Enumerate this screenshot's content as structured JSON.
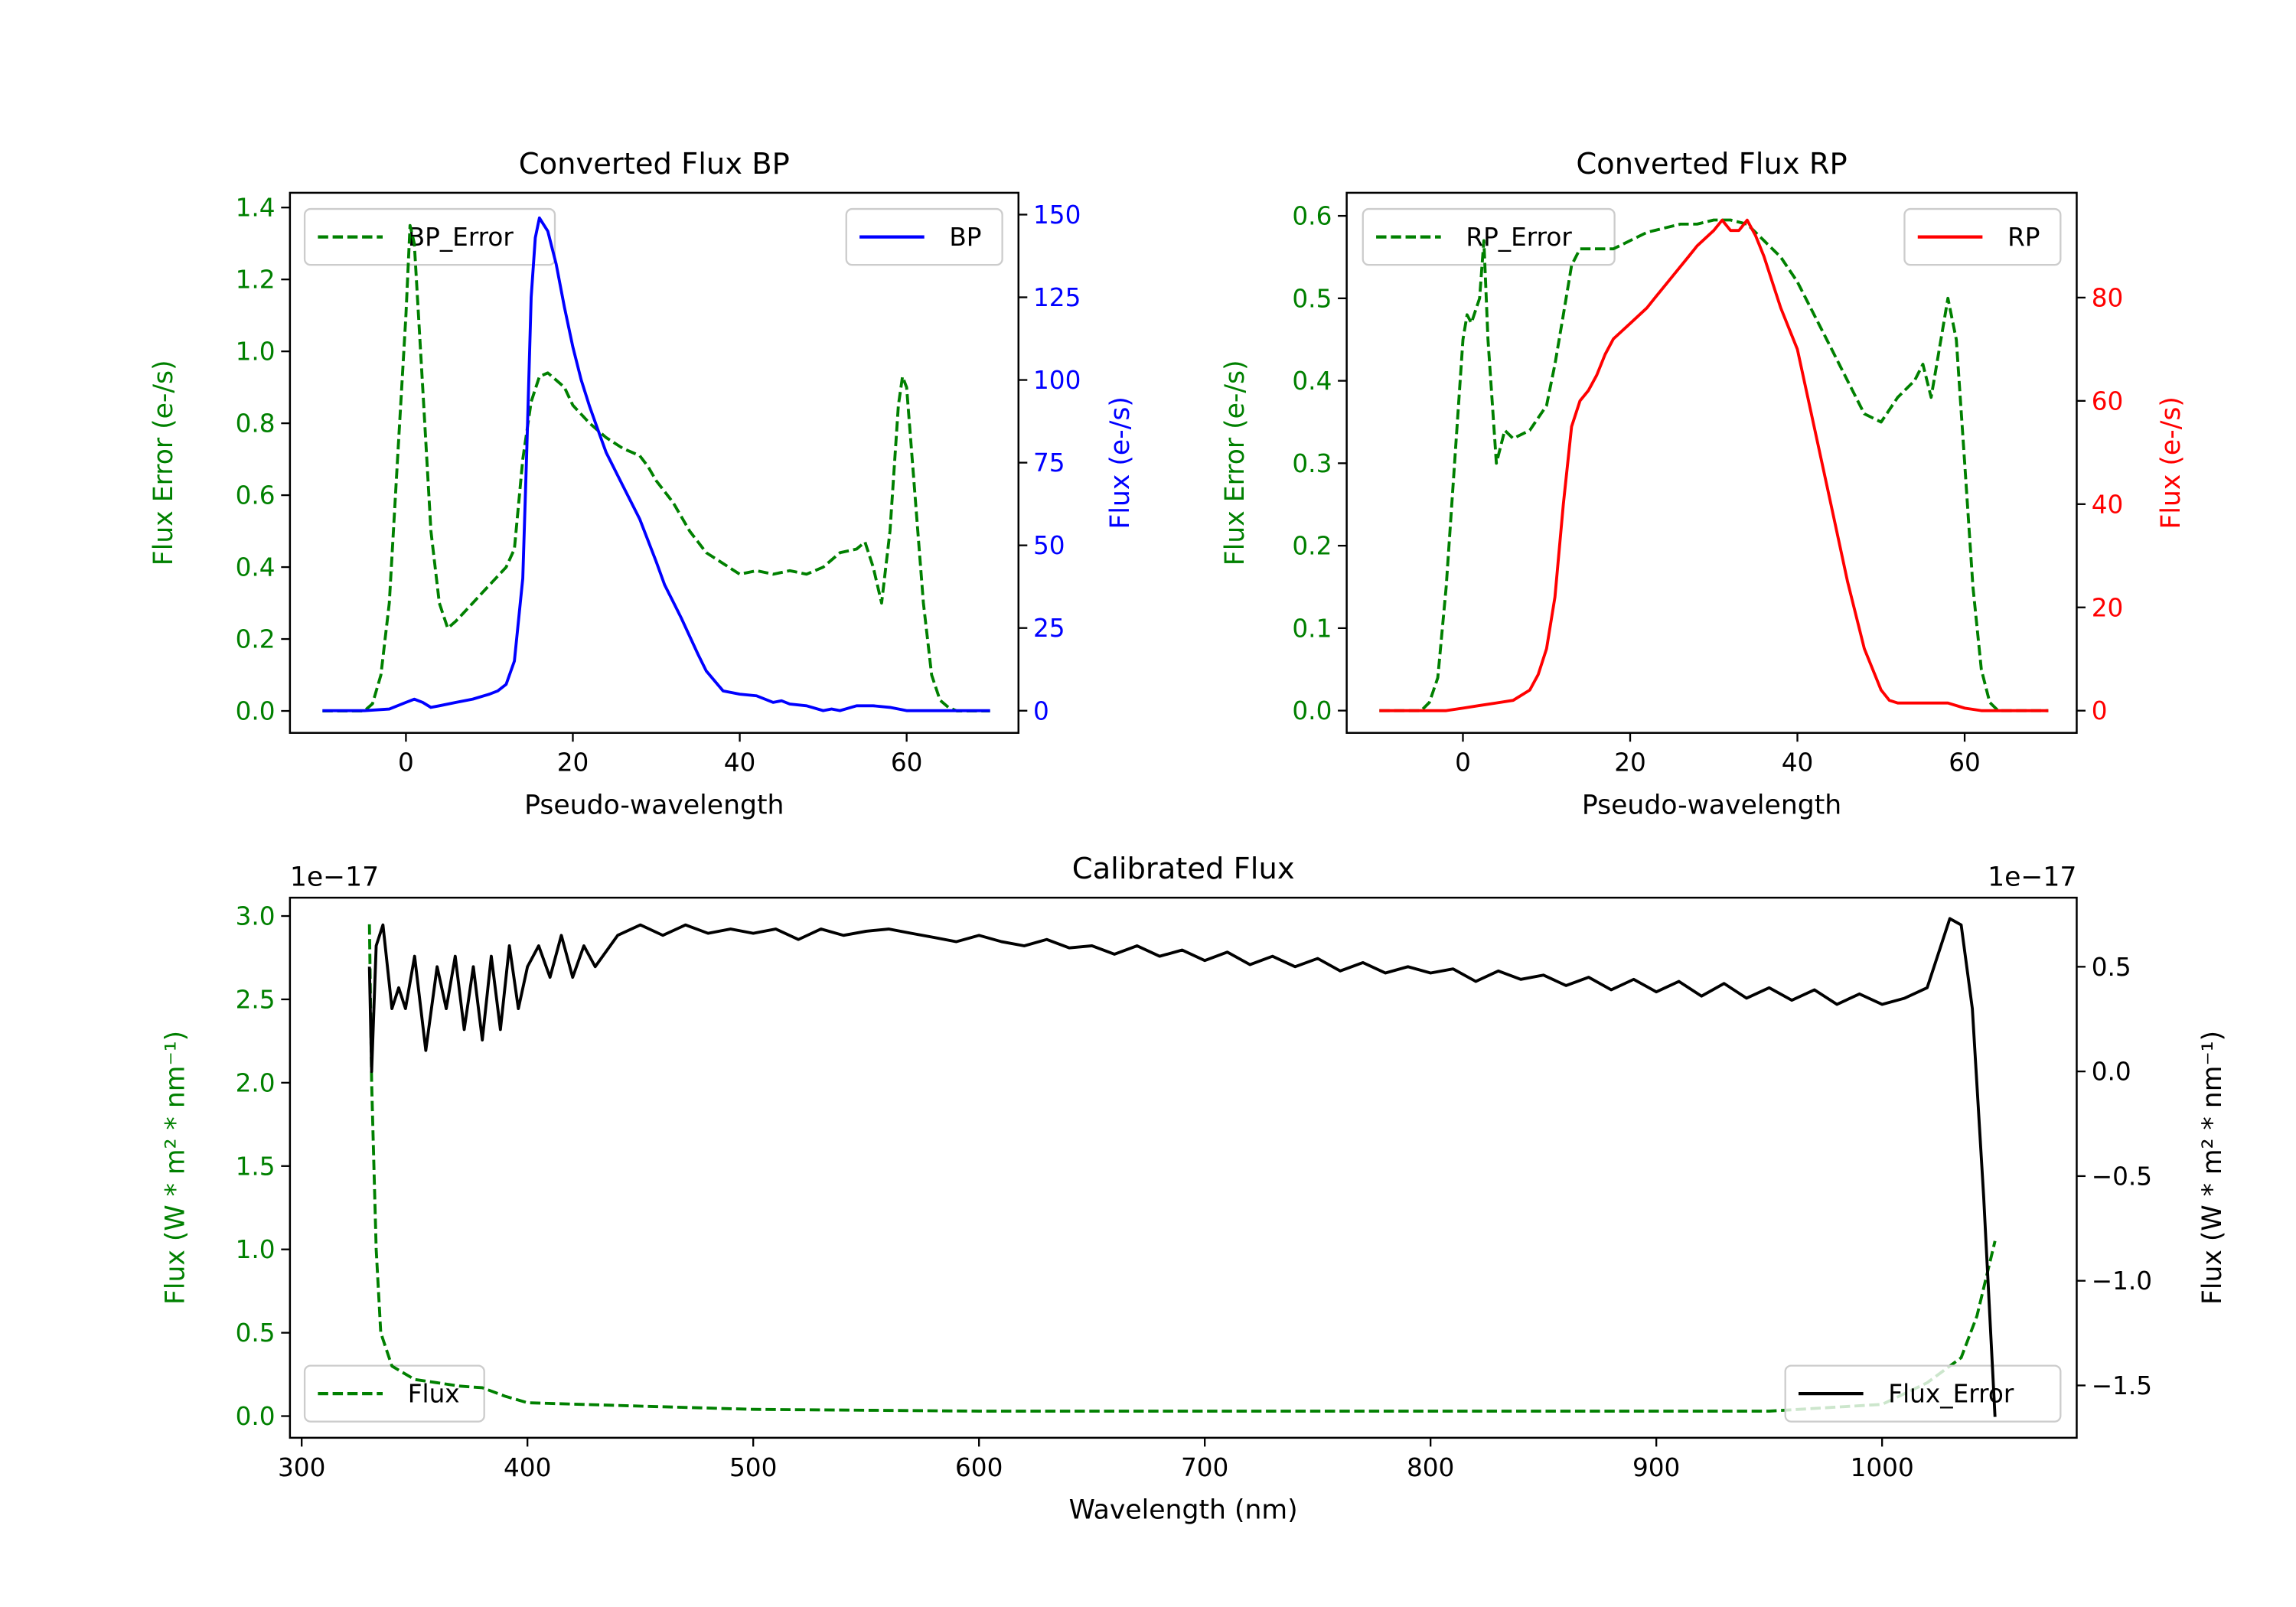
{
  "colors": {
    "error": "#008000",
    "bp": "#0000ff",
    "rp": "#ff0000",
    "flux": "#000000",
    "axis": "#000000"
  },
  "chart_data": [
    {
      "type": "line",
      "title": "Converted Flux BP",
      "xlabel": "Pseudo-wavelength",
      "ylabel_left": "Flux Error (e-/s)",
      "ylabel_right": "Flux (e-/s)",
      "left_color": "#008000",
      "right_color": "#0000ff",
      "xlim": [
        -13.9,
        73.4
      ],
      "ylim_left": [
        -0.061,
        1.441
      ],
      "ylim_right": [
        -6.7,
        156.6
      ],
      "xticks": [
        0,
        20,
        40,
        60
      ],
      "xtick_labels": [
        "0",
        "20",
        "40",
        "60"
      ],
      "yticks_left": [
        0,
        0.2,
        0.4,
        0.6,
        0.8,
        1.0,
        1.2,
        1.4
      ],
      "ytick_labels_left": [
        "0.0",
        "0.2",
        "0.4",
        "0.6",
        "0.8",
        "1.0",
        "1.2",
        "1.4"
      ],
      "yticks_right": [
        0,
        25,
        50,
        75,
        100,
        125,
        150
      ],
      "ytick_labels_right": [
        "0",
        "25",
        "50",
        "75",
        "100",
        "125",
        "150"
      ],
      "offset_left": "",
      "offset_right": "",
      "legend_left": {
        "label": "BP_Error",
        "placement": "top-left"
      },
      "legend_right": {
        "label": "BP",
        "placement": "top-right"
      },
      "series_left": {
        "name": "BP_Error",
        "style": "dashed",
        "color": "#008000",
        "x": [
          -10,
          -5,
          -4,
          -3,
          -2,
          -1,
          0,
          0.5,
          1,
          2,
          3,
          4,
          5,
          6,
          8,
          10,
          12,
          13,
          14,
          15,
          16,
          17,
          18,
          19,
          20,
          22,
          24,
          26,
          28,
          29,
          30,
          32,
          34,
          36,
          38,
          40,
          42,
          44,
          46,
          48,
          50,
          52,
          54,
          55,
          56,
          57,
          58,
          59,
          59.5,
          60,
          61,
          62,
          63,
          64,
          65,
          66,
          70
        ],
        "y": [
          0,
          0,
          0.02,
          0.1,
          0.3,
          0.7,
          1.1,
          1.35,
          1.3,
          0.9,
          0.5,
          0.3,
          0.23,
          0.25,
          0.3,
          0.35,
          0.4,
          0.45,
          0.7,
          0.86,
          0.93,
          0.94,
          0.92,
          0.9,
          0.85,
          0.8,
          0.76,
          0.73,
          0.71,
          0.68,
          0.64,
          0.58,
          0.5,
          0.44,
          0.41,
          0.38,
          0.39,
          0.38,
          0.39,
          0.38,
          0.4,
          0.44,
          0.45,
          0.47,
          0.4,
          0.3,
          0.5,
          0.85,
          0.93,
          0.9,
          0.6,
          0.3,
          0.1,
          0.03,
          0.01,
          0,
          0
        ]
      },
      "series_right": {
        "name": "BP",
        "style": "solid",
        "color": "#0000ff",
        "x": [
          -10,
          -5,
          -2,
          0,
          1,
          2,
          3,
          4,
          6,
          8,
          10,
          11,
          12,
          13,
          14,
          14.5,
          15,
          15.5,
          16,
          17,
          18,
          19,
          20,
          21,
          22,
          23,
          24,
          26,
          28,
          30,
          31,
          32,
          33,
          35,
          36,
          38,
          40,
          42,
          44,
          45,
          46,
          48,
          50,
          51,
          52,
          54,
          56,
          58,
          60,
          62,
          70
        ],
        "y": [
          0,
          0,
          0.5,
          2.5,
          3.5,
          2.5,
          1,
          1.5,
          2.5,
          3.5,
          5,
          6,
          8,
          15,
          40,
          80,
          125,
          143,
          149,
          145,
          135,
          122,
          110,
          100,
          92,
          85,
          78,
          68,
          58,
          45,
          38,
          33,
          28,
          17,
          12,
          6,
          5,
          4.5,
          2.5,
          3,
          2,
          1.5,
          0,
          0.5,
          0,
          1.5,
          1.5,
          1,
          0,
          0,
          0
        ]
      }
    },
    {
      "type": "line",
      "title": "Converted Flux RP",
      "xlabel": "Pseudo-wavelength",
      "ylabel_left": "Flux Error (e-/s)",
      "ylabel_right": "Flux (e-/s)",
      "left_color": "#008000",
      "right_color": "#ff0000",
      "xlim": [
        -13.9,
        73.4
      ],
      "ylim_left": [
        -0.027,
        0.628
      ],
      "ylim_right": [
        -4.3,
        100.3
      ],
      "xticks": [
        0,
        20,
        40,
        60
      ],
      "xtick_labels": [
        "0",
        "20",
        "40",
        "60"
      ],
      "yticks_left": [
        0,
        0.1,
        0.2,
        0.3,
        0.4,
        0.5,
        0.6
      ],
      "ytick_labels_left": [
        "0.0",
        "0.1",
        "0.2",
        "0.3",
        "0.4",
        "0.5",
        "0.6"
      ],
      "yticks_right": [
        0,
        20,
        40,
        60,
        80
      ],
      "ytick_labels_right": [
        "0",
        "20",
        "40",
        "60",
        "80"
      ],
      "offset_left": "",
      "offset_right": "",
      "legend_left": {
        "label": "RP_Error",
        "placement": "top-left"
      },
      "legend_right": {
        "label": "RP",
        "placement": "top-right"
      },
      "series_left": {
        "name": "RP_Error",
        "style": "dashed",
        "color": "#008000",
        "x": [
          -10,
          -5,
          -4,
          -3,
          -2,
          -1,
          0,
          0.5,
          1,
          2,
          2.5,
          3,
          4,
          5,
          6,
          8,
          10,
          11,
          12,
          13,
          14,
          16,
          18,
          20,
          22,
          24,
          26,
          28,
          30,
          32,
          34,
          36,
          38,
          40,
          42,
          44,
          46,
          48,
          50,
          52,
          54,
          55,
          56,
          57,
          58,
          59,
          60,
          61,
          62,
          63,
          64,
          70
        ],
        "y": [
          0,
          0,
          0.01,
          0.04,
          0.15,
          0.3,
          0.45,
          0.48,
          0.47,
          0.5,
          0.57,
          0.45,
          0.3,
          0.34,
          0.33,
          0.34,
          0.37,
          0.42,
          0.48,
          0.54,
          0.56,
          0.56,
          0.56,
          0.57,
          0.58,
          0.585,
          0.59,
          0.59,
          0.595,
          0.595,
          0.59,
          0.57,
          0.55,
          0.52,
          0.48,
          0.44,
          0.4,
          0.36,
          0.35,
          0.38,
          0.4,
          0.42,
          0.38,
          0.44,
          0.5,
          0.45,
          0.3,
          0.15,
          0.05,
          0.01,
          0,
          0
        ]
      },
      "series_right": {
        "name": "RP",
        "style": "solid",
        "color": "#ff0000",
        "x": [
          -10,
          -2,
          0,
          2,
          4,
          6,
          8,
          9,
          10,
          11,
          12,
          13,
          14,
          15,
          16,
          17,
          18,
          20,
          22,
          23,
          25,
          27,
          28,
          30,
          31,
          32,
          33,
          34,
          35,
          36,
          38,
          40,
          42,
          44,
          46,
          48,
          50,
          51,
          52,
          56,
          58,
          60,
          62,
          70
        ],
        "y": [
          0,
          0,
          0.5,
          1,
          1.5,
          2,
          4,
          7,
          12,
          22,
          40,
          55,
          60,
          62,
          65,
          69,
          72,
          75,
          78,
          80,
          84,
          88,
          90,
          93,
          95,
          93,
          93,
          95,
          92,
          88,
          78,
          70,
          55,
          40,
          25,
          12,
          4,
          2,
          1.5,
          1.5,
          1.5,
          0.5,
          0,
          0
        ]
      }
    },
    {
      "type": "line",
      "title": "Calibrated Flux",
      "xlabel": "Wavelength (nm)",
      "ylabel_left": "Flux (W * m² * nm⁻¹)",
      "ylabel_right": "Flux (W * m² * nm⁻¹)",
      "left_color": "#008000",
      "right_color": "#000000",
      "xlim": [
        294.8,
        1086.2
      ],
      "ylim_left": [
        -0.13,
        3.11
      ],
      "ylim_right": [
        -1.75,
        0.83
      ],
      "xticks": [
        300,
        400,
        500,
        600,
        700,
        800,
        900,
        1000
      ],
      "xtick_labels": [
        "300",
        "400",
        "500",
        "600",
        "700",
        "800",
        "900",
        "1000"
      ],
      "yticks_left": [
        0,
        0.5,
        1.0,
        1.5,
        2.0,
        2.5,
        3.0
      ],
      "ytick_labels_left": [
        "0.0",
        "0.5",
        "1.0",
        "1.5",
        "2.0",
        "2.5",
        "3.0"
      ],
      "yticks_right": [
        -1.5,
        -1.0,
        -0.5,
        0.0,
        0.5
      ],
      "ytick_labels_right": [
        "−1.5",
        "−1.0",
        "−0.5",
        "0.0",
        "0.5"
      ],
      "offset_left": "1e−17",
      "offset_right": "1e−17",
      "legend_left": {
        "label": "Flux",
        "placement": "lower-left"
      },
      "legend_right": {
        "label": "Flux_Error",
        "placement": "lower-right"
      },
      "series_left": {
        "name": "Flux_Error",
        "style": "dashed",
        "color": "#008000",
        "x": [
          330,
          331,
          333,
          335,
          340,
          350,
          360,
          370,
          380,
          390,
          400,
          450,
          500,
          600,
          700,
          800,
          900,
          950,
          1000,
          1020,
          1035,
          1042,
          1050
        ],
        "y": [
          2.95,
          2.0,
          1.0,
          0.5,
          0.3,
          0.22,
          0.2,
          0.18,
          0.17,
          0.12,
          0.08,
          0.06,
          0.04,
          0.03,
          0.03,
          0.03,
          0.03,
          0.03,
          0.07,
          0.2,
          0.35,
          0.6,
          1.05
        ]
      },
      "series_right": {
        "name": "Flux",
        "style": "solid",
        "color": "#000000",
        "x": [
          330,
          331,
          333,
          336,
          340,
          343,
          346,
          350,
          355,
          360,
          364,
          368,
          372,
          376,
          380,
          384,
          388,
          392,
          396,
          400,
          405,
          410,
          415,
          420,
          425,
          430,
          440,
          450,
          460,
          470,
          480,
          490,
          500,
          510,
          520,
          530,
          540,
          550,
          560,
          570,
          580,
          590,
          600,
          610,
          620,
          630,
          640,
          650,
          660,
          670,
          680,
          690,
          700,
          710,
          720,
          730,
          740,
          750,
          760,
          770,
          780,
          790,
          800,
          810,
          820,
          830,
          840,
          850,
          860,
          870,
          880,
          890,
          900,
          910,
          920,
          930,
          940,
          950,
          960,
          970,
          980,
          990,
          1000,
          1010,
          1020,
          1030,
          1035,
          1040,
          1045,
          1050
        ],
        "y": [
          0.5,
          0.0,
          0.6,
          0.7,
          0.3,
          0.4,
          0.3,
          0.55,
          0.1,
          0.5,
          0.3,
          0.55,
          0.2,
          0.5,
          0.15,
          0.55,
          0.2,
          0.6,
          0.3,
          0.5,
          0.6,
          0.45,
          0.65,
          0.45,
          0.6,
          0.5,
          0.65,
          0.7,
          0.65,
          0.7,
          0.66,
          0.68,
          0.66,
          0.68,
          0.63,
          0.68,
          0.65,
          0.67,
          0.68,
          0.66,
          0.64,
          0.62,
          0.65,
          0.62,
          0.6,
          0.63,
          0.59,
          0.6,
          0.56,
          0.6,
          0.55,
          0.58,
          0.53,
          0.57,
          0.51,
          0.55,
          0.5,
          0.54,
          0.48,
          0.52,
          0.47,
          0.5,
          0.47,
          0.49,
          0.43,
          0.48,
          0.44,
          0.46,
          0.41,
          0.45,
          0.39,
          0.44,
          0.38,
          0.43,
          0.36,
          0.42,
          0.35,
          0.4,
          0.34,
          0.39,
          0.32,
          0.37,
          0.32,
          0.35,
          0.4,
          0.73,
          0.7,
          0.3,
          -0.6,
          -1.65
        ]
      }
    }
  ]
}
